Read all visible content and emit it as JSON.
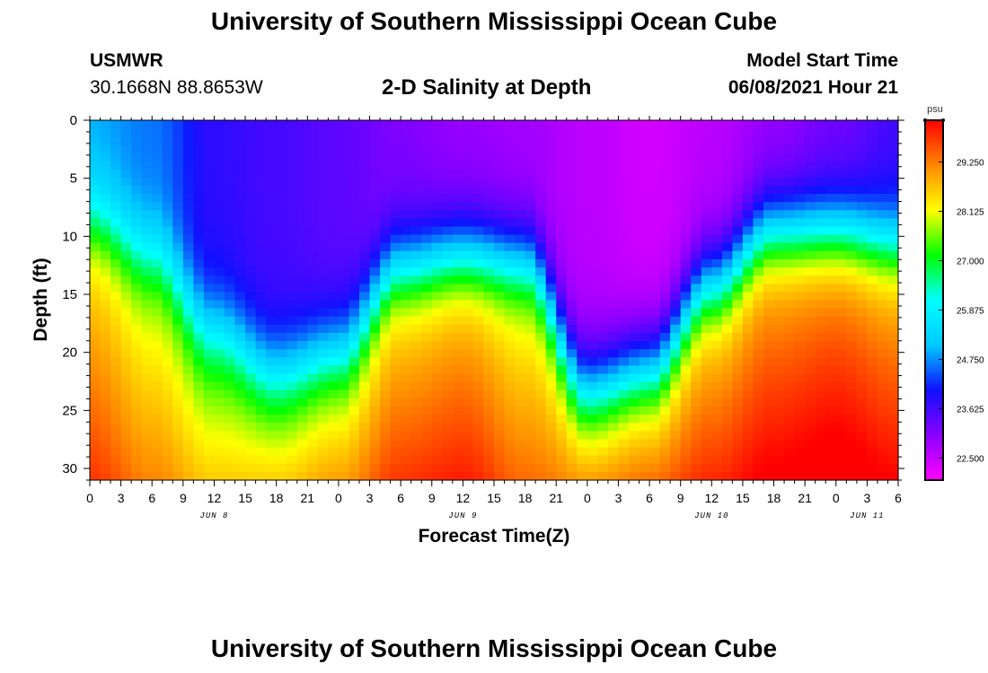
{
  "header": {
    "title_top": "University of Southern Mississippi Ocean Cube",
    "station": "USMWR",
    "coords": "30.1668N  88.8653W",
    "subtitle": "2-D Salinity at Depth",
    "model_start_label": "Model Start Time",
    "model_start_value": "06/08/2021 Hour 21"
  },
  "footer": {
    "title_bottom": "University of Southern Mississippi Ocean Cube"
  },
  "colors": {
    "colormap": [
      "#ff00ff",
      "#8a00ff",
      "#1010ff",
      "#00c8ff",
      "#00ffff",
      "#00ff00",
      "#ffff00",
      "#ff8800",
      "#ff0000"
    ]
  },
  "chart_data": {
    "type": "heatmap",
    "xlabel": "Forecast Time(Z)",
    "ylabel": "Depth (ft)",
    "colorbar_label": "psu",
    "x_range_hours": [
      0,
      78
    ],
    "y_range": [
      0,
      31
    ],
    "y_inverted": true,
    "x_tick_labels": [
      "0",
      "3",
      "6",
      "9",
      "12",
      "15",
      "18",
      "21",
      "0",
      "3",
      "6",
      "9",
      "12",
      "15",
      "18",
      "21",
      "0",
      "3",
      "6",
      "9",
      "12",
      "15",
      "18",
      "21",
      "0",
      "3",
      "6"
    ],
    "y_ticks": [
      0,
      5,
      10,
      15,
      20,
      25,
      30
    ],
    "date_labels": [
      {
        "text": "JUN 8",
        "hour": 12
      },
      {
        "text": "JUN 9",
        "hour": 36
      },
      {
        "text": "JUN 10",
        "hour": 60
      },
      {
        "text": "JUN 11",
        "hour": 75
      }
    ],
    "colorbar_range": [
      22.0,
      30.2
    ],
    "colorbar_ticks": [
      "22.500",
      "23.625",
      "24.750",
      "25.875",
      "27.000",
      "28.125",
      "29.250"
    ],
    "grid": false,
    "salinity_by_time": {
      "hours": [
        0,
        6,
        12,
        18,
        24,
        30,
        36,
        42,
        48,
        54,
        60,
        66,
        72,
        78
      ],
      "surface_psu": [
        24.9,
        24.6,
        23.8,
        23.6,
        23.4,
        23.1,
        22.9,
        22.8,
        22.6,
        22.4,
        22.6,
        22.9,
        23.2,
        23.6
      ],
      "halocline_depth_ft": [
        8.5,
        11.5,
        17.5,
        21.0,
        19.5,
        12.5,
        11.5,
        12.0,
        22.5,
        21.0,
        14.0,
        9.5,
        9.5,
        10.5
      ],
      "bottom_psu": [
        29.4,
        28.8,
        28.2,
        28.2,
        28.6,
        29.4,
        29.6,
        29.0,
        28.7,
        29.0,
        29.5,
        29.9,
        30.1,
        29.8
      ]
    }
  }
}
